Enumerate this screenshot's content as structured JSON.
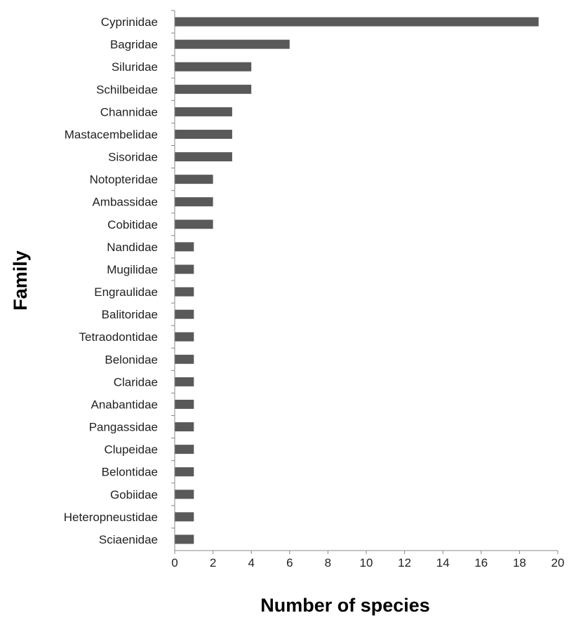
{
  "chart_data": {
    "type": "bar",
    "orientation": "horizontal",
    "title": "",
    "xlabel": "Number of species",
    "ylabel": "Family",
    "xlim": [
      0,
      20
    ],
    "xticks": [
      0,
      2,
      4,
      6,
      8,
      10,
      12,
      14,
      16,
      18,
      20
    ],
    "grid": false,
    "legend": "none",
    "bar_color": "#595959",
    "categories": [
      "Cyprinidae",
      "Bagridae",
      "Siluridae",
      "Schilbeidae",
      "Channidae",
      "Mastacembelidae",
      "Sisoridae",
      "Notopteridae",
      "Ambassidae",
      "Cobitidae",
      "Nandidae",
      "Mugilidae",
      "Engraulidae",
      "Balitoridae",
      "Tetraodontidae",
      "Belonidae",
      "Claridae",
      "Anabantidae",
      "Pangassidae",
      "Clupeidae",
      "Belontidae",
      "Gobiidae",
      "Heteropneustidae",
      "Sciaenidae"
    ],
    "values": [
      19,
      6,
      4,
      4,
      3,
      3,
      3,
      2,
      2,
      2,
      1,
      1,
      1,
      1,
      1,
      1,
      1,
      1,
      1,
      1,
      1,
      1,
      1,
      1
    ]
  }
}
